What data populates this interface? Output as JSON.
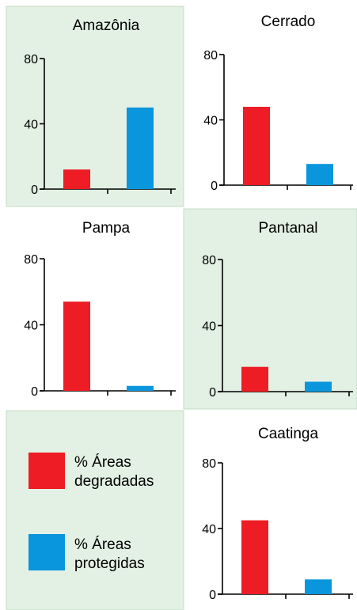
{
  "chart_data": [
    {
      "type": "bar",
      "title": "Amazônia",
      "categories": [
        "% Áreas degradadas",
        "% Áreas protegidas"
      ],
      "values": [
        12,
        50
      ],
      "ylim": [
        0,
        80
      ],
      "yticks": [
        "0",
        "40",
        "80"
      ],
      "colors": [
        "#ee1c24",
        "#0a96dc"
      ],
      "shaded": true
    },
    {
      "type": "bar",
      "title": "Cerrado",
      "categories": [
        "% Áreas degradadas",
        "% Áreas protegidas"
      ],
      "values": [
        48,
        13
      ],
      "ylim": [
        0,
        80
      ],
      "yticks": [
        "0",
        "40",
        "80"
      ],
      "colors": [
        "#ee1c24",
        "#0a96dc"
      ],
      "shaded": false
    },
    {
      "type": "bar",
      "title": "Pampa",
      "categories": [
        "% Áreas degradadas",
        "% Áreas protegidas"
      ],
      "values": [
        54,
        3
      ],
      "ylim": [
        0,
        80
      ],
      "yticks": [
        "0",
        "40",
        "80"
      ],
      "colors": [
        "#ee1c24",
        "#0a96dc"
      ],
      "shaded": false
    },
    {
      "type": "bar",
      "title": "Pantanal",
      "categories": [
        "% Áreas degradadas",
        "% Áreas protegidas"
      ],
      "values": [
        15,
        6
      ],
      "ylim": [
        0,
        80
      ],
      "yticks": [
        "0",
        "40",
        "80"
      ],
      "colors": [
        "#ee1c24",
        "#0a96dc"
      ],
      "shaded": true
    },
    {
      "type": "bar",
      "title": "Caatinga",
      "categories": [
        "% Áreas degradadas",
        "% Áreas protegidas"
      ],
      "values": [
        45,
        9
      ],
      "ylim": [
        0,
        80
      ],
      "yticks": [
        "0",
        "40",
        "80"
      ],
      "colors": [
        "#ee1c24",
        "#0a96dc"
      ],
      "shaded": false
    }
  ],
  "legend": {
    "items": [
      {
        "lines": [
          "% Áreas",
          "degradadas"
        ],
        "color": "#ee1c24"
      },
      {
        "lines": [
          "% Áreas",
          "protegidas"
        ],
        "color": "#0a96dc"
      }
    ]
  },
  "colors": {
    "panel_shade": "#e3f0e4",
    "panel_border": "#c3dcc6",
    "axis": "#000000"
  }
}
